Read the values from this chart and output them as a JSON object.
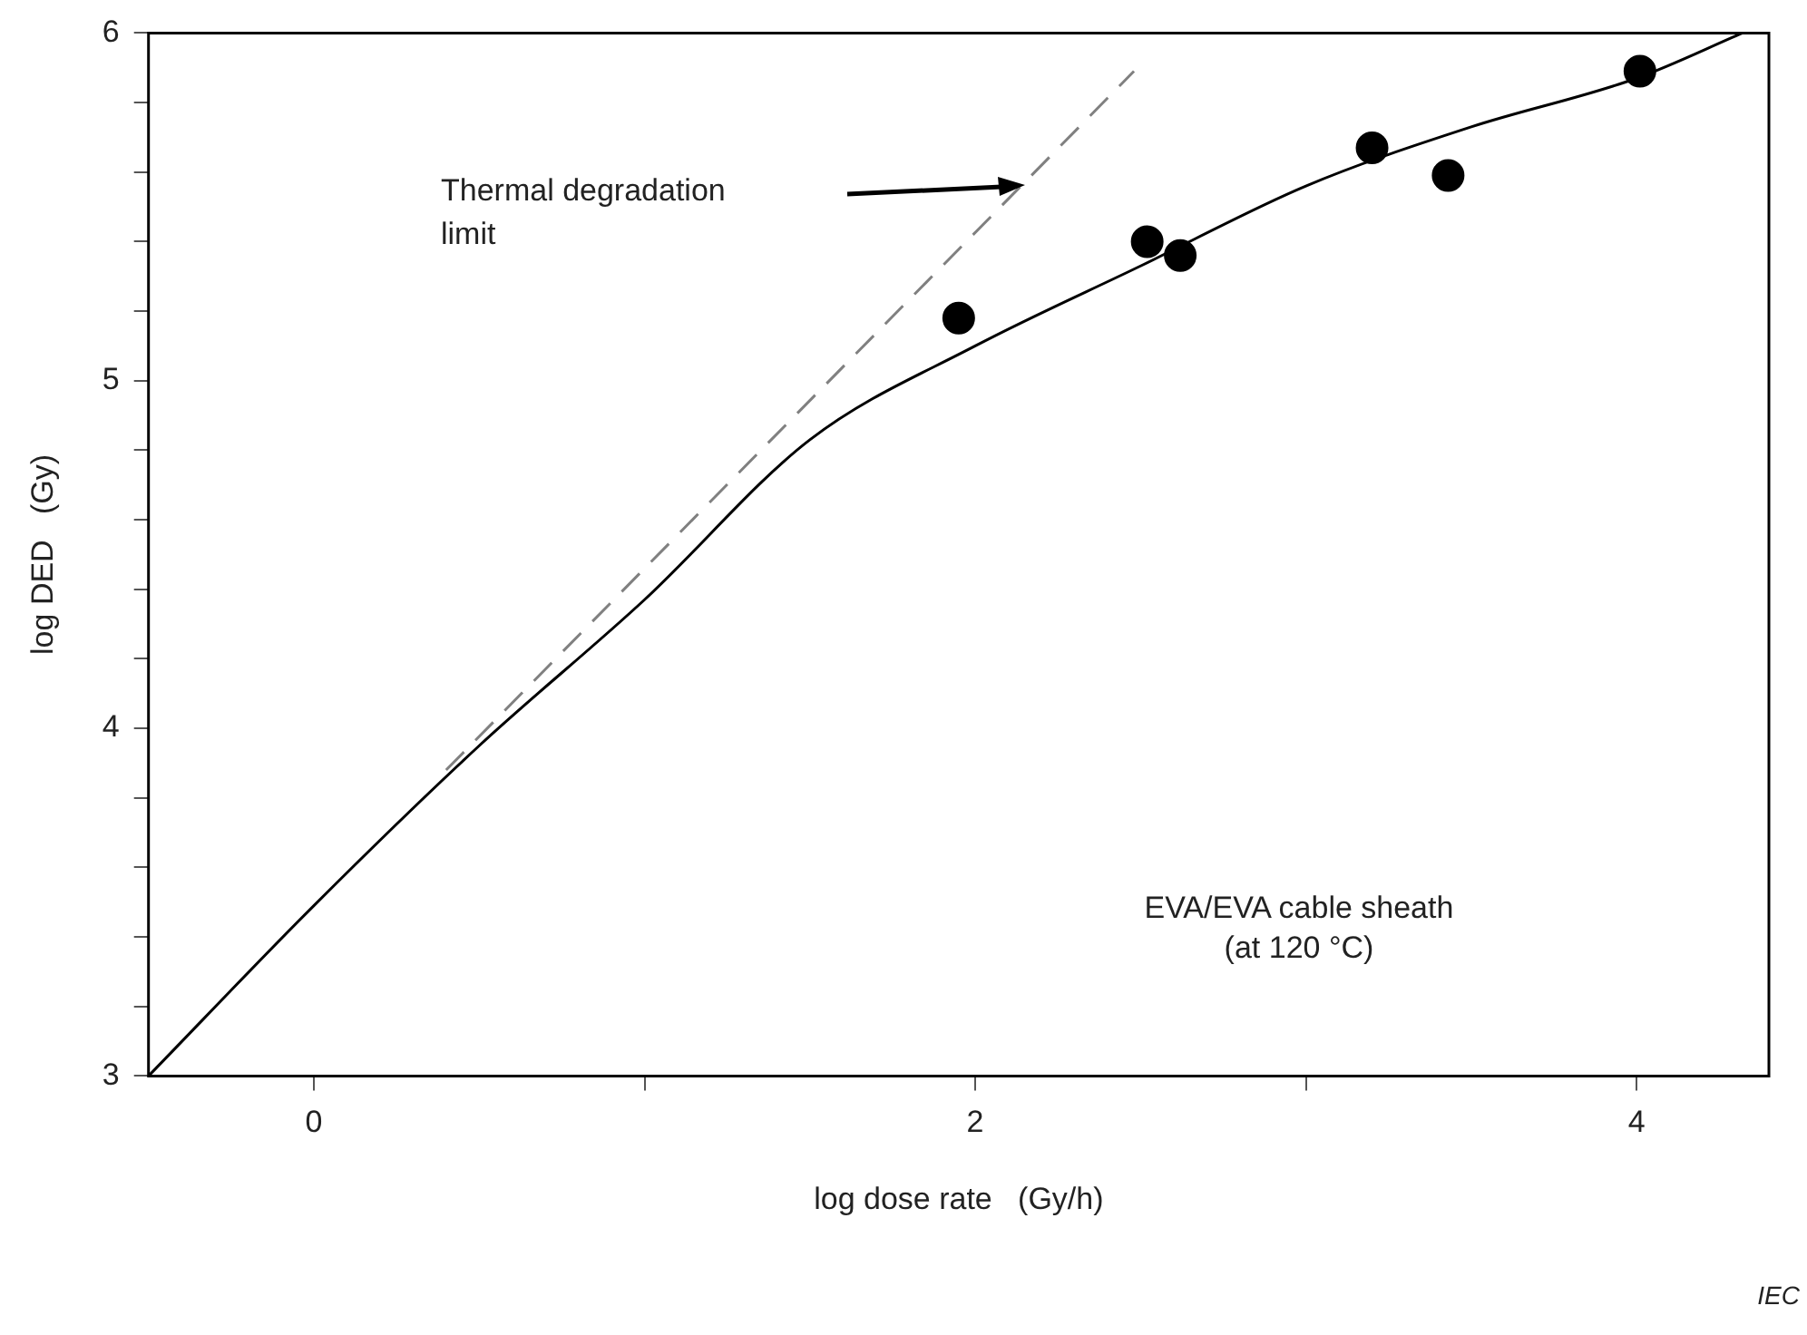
{
  "chart_data": {
    "type": "scatter",
    "xlabel": "log dose rate   (Gy/h)",
    "ylabel": "log DED   (Gy)",
    "xlim": [
      -0.5,
      4.4
    ],
    "ylim": [
      3,
      6
    ],
    "xticks": [
      0,
      {
        "value": 1,
        "label": null
      },
      2,
      {
        "value": 3,
        "label": null
      },
      4
    ],
    "yticks": [
      3,
      {
        "value": 3.2,
        "label": null
      },
      {
        "value": 3.4,
        "label": null
      },
      {
        "value": 3.6,
        "label": null
      },
      {
        "value": 3.8,
        "label": null
      },
      4,
      {
        "value": 4.2,
        "label": null
      },
      {
        "value": 4.4,
        "label": null
      },
      {
        "value": 4.6,
        "label": null
      },
      {
        "value": 4.8,
        "label": null
      },
      5,
      {
        "value": 5.2,
        "label": null
      },
      {
        "value": 5.4,
        "label": null
      },
      {
        "value": 5.6,
        "label": null
      },
      {
        "value": 5.8,
        "label": null
      },
      6
    ],
    "grid": false,
    "series": [
      {
        "type": "line",
        "color": "#000000",
        "line_style": "solid",
        "marker": "none",
        "x": [
          -0.5,
          0,
          0.5,
          1,
          1.5,
          2,
          2.5,
          3,
          3.5,
          4,
          4.32
        ],
        "values": [
          3.0,
          3.49,
          3.95,
          4.37,
          4.83,
          5.1,
          5.33,
          5.56,
          5.73,
          5.87,
          6.0
        ]
      },
      {
        "type": "line",
        "color": "#808080",
        "line_style": "dashed",
        "marker": "none",
        "x": [
          0.4,
          2.48
        ],
        "values": [
          3.88,
          5.89
        ]
      },
      {
        "type": "scatter",
        "color": "#000000",
        "marker": "circle",
        "x": [
          1.95,
          2.52,
          2.62,
          3.2,
          3.43,
          4.01
        ],
        "values": [
          5.18,
          5.4,
          5.36,
          5.67,
          5.59,
          5.89
        ]
      }
    ],
    "annotations": [
      "Thermal degradation\nlimit",
      "EVA/EVA cable sheath\n(at 120 °C)",
      "IEC"
    ]
  }
}
